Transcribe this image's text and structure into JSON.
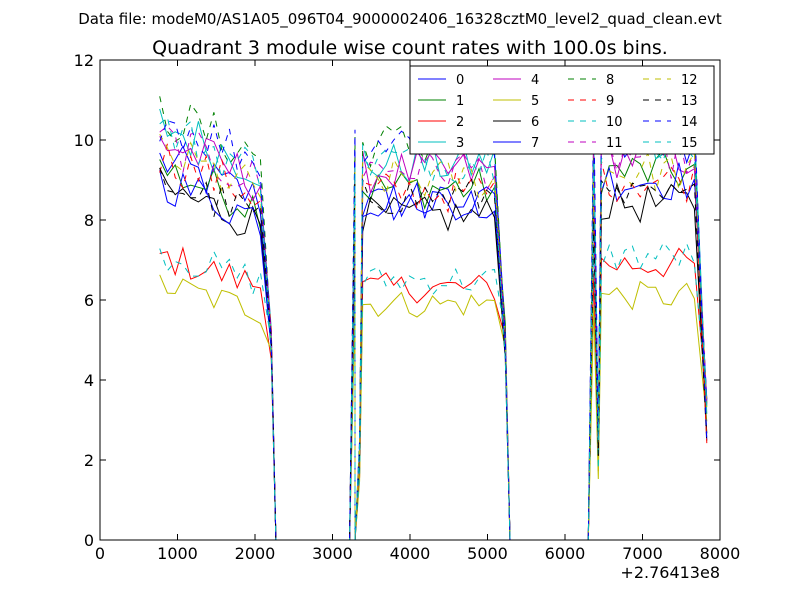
{
  "header": {
    "datafile": "Data file: modeM0/AS1A05_096T04_9000002406_16328cztM0_level2_quad_clean.evt"
  },
  "chart_data": {
    "type": "line",
    "title": "Quadrant 3 module wise count rates with 100.0s bins.",
    "xlabel": "",
    "ylabel": "",
    "x_offset_label": "+2.76413e8",
    "xlim": [
      0,
      8000
    ],
    "ylim": [
      0,
      12
    ],
    "xticks": [
      0,
      1000,
      2000,
      3000,
      4000,
      5000,
      6000,
      7000,
      8000
    ],
    "xtick_labels": [
      "0",
      "1000",
      "2000",
      "3000",
      "4000",
      "5000",
      "6000",
      "7000",
      "8000"
    ],
    "yticks": [
      0,
      2,
      4,
      6,
      8,
      10,
      12
    ],
    "ytick_labels": [
      "0",
      "2",
      "4",
      "6",
      "8",
      "10",
      "12"
    ],
    "legend_position": "top-right",
    "segments": [
      [
        770,
        2270
      ],
      [
        3290,
        5290
      ],
      [
        6370,
        7890
      ]
    ],
    "series": [
      {
        "name": "0",
        "color": "#0000ff",
        "dash": "solid",
        "level": [
          9.5,
          8.4,
          9.9
        ]
      },
      {
        "name": "1",
        "color": "#008000",
        "dash": "solid",
        "level": [
          9.3,
          8.8,
          9.2
        ]
      },
      {
        "name": "2",
        "color": "#ff0000",
        "dash": "solid",
        "level": [
          7.1,
          6.3,
          6.9
        ]
      },
      {
        "name": "3",
        "color": "#00bfbf",
        "dash": "solid",
        "level": [
          10.4,
          9.4,
          10.1
        ]
      },
      {
        "name": "4",
        "color": "#bf00bf",
        "dash": "solid",
        "level": [
          10.0,
          9.2,
          9.6
        ]
      },
      {
        "name": "5",
        "color": "#bfbf00",
        "dash": "solid",
        "level": [
          6.4,
          5.9,
          6.1
        ]
      },
      {
        "name": "6",
        "color": "#000000",
        "dash": "solid",
        "level": [
          8.8,
          8.1,
          8.4
        ]
      },
      {
        "name": "7",
        "color": "#0000ff",
        "dash": "solid",
        "level": [
          9.0,
          8.5,
          9.0
        ]
      },
      {
        "name": "8",
        "color": "#008000",
        "dash": "dashed",
        "level": [
          10.7,
          9.9,
          10.2
        ]
      },
      {
        "name": "9",
        "color": "#ff0000",
        "dash": "dashed",
        "level": [
          9.6,
          8.7,
          9.0
        ]
      },
      {
        "name": "10",
        "color": "#00bfbf",
        "dash": "dashed",
        "level": [
          7.2,
          6.5,
          7.1
        ]
      },
      {
        "name": "11",
        "color": "#bf00bf",
        "dash": "dashed",
        "level": [
          10.0,
          9.3,
          9.6
        ]
      },
      {
        "name": "12",
        "color": "#bfbf00",
        "dash": "dashed",
        "level": [
          9.7,
          9.0,
          9.2
        ]
      },
      {
        "name": "13",
        "color": "#000000",
        "dash": "dashed",
        "level": [
          9.0,
          8.6,
          8.5
        ]
      },
      {
        "name": "14",
        "color": "#0000ff",
        "dash": "dashed",
        "level": [
          10.6,
          10.0,
          10.4
        ]
      },
      {
        "name": "15",
        "color": "#00bfbf",
        "dash": "dashed",
        "level": [
          10.3,
          9.5,
          10.0
        ]
      }
    ]
  }
}
